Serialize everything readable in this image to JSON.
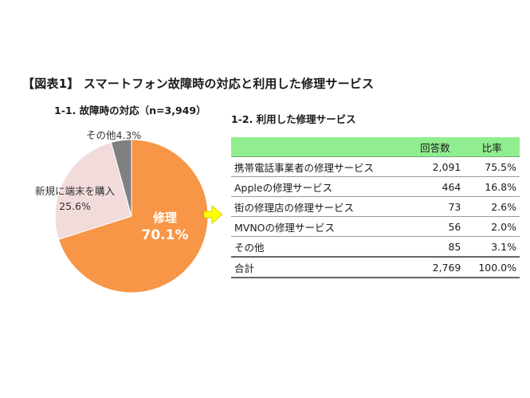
{
  "figure": {
    "title": "【図表1】 スマートフォン故障時の対応と利用した修理サービス",
    "sub1_title": "1-1. 故障時の対応（n=3,949）",
    "sub2_title": "1-2. 利用した修理サービス"
  },
  "chart_data": [
    {
      "type": "pie",
      "title": "1-1. 故障時の対応（n=3,949）",
      "slices": [
        {
          "label": "修理",
          "value": 70.1,
          "display": "70.1%",
          "color": "#f79646"
        },
        {
          "label": "新規に端末を購入",
          "value": 25.6,
          "display": "25.6%",
          "color": "#f2dcdb"
        },
        {
          "label": "その他",
          "value": 4.3,
          "display": "4.3%",
          "color": "#808080"
        }
      ],
      "label_texts": {
        "other": "その他4.3%",
        "new_line1": "新規に端末を購入",
        "new_line2": "25.6%",
        "repair_line1": "修理",
        "repair_line2": "70.1%"
      },
      "arrow_color": "#ffff00"
    },
    {
      "type": "table",
      "title": "1-2. 利用した修理サービス",
      "header": [
        "",
        "回答数",
        "比率"
      ],
      "header_color": "#90ee90",
      "rows": [
        {
          "name": "携帯電話事業者の修理サービス",
          "count": "2,091",
          "ratio": "75.5%"
        },
        {
          "name": "Appleの修理サービス",
          "count": "464",
          "ratio": "16.8%"
        },
        {
          "name": "街の修理店の修理サービス",
          "count": "73",
          "ratio": "2.6%"
        },
        {
          "name": "MVNOの修理サービス",
          "count": "56",
          "ratio": "2.0%"
        },
        {
          "name": "その他",
          "count": "85",
          "ratio": "3.1%"
        }
      ],
      "total": {
        "name": "合計",
        "count": "2,769",
        "ratio": "100.0%"
      }
    }
  ]
}
